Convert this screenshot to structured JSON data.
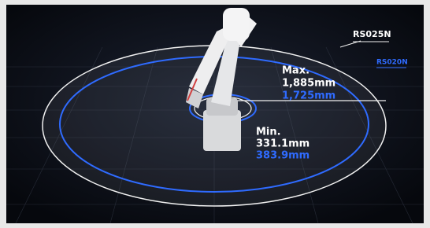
{
  "labels": {
    "outer_model": "RS025N",
    "inner_model": "RS020N"
  },
  "max_reach": {
    "title": "Max.",
    "outer_value": "1,885mm",
    "inner_value": "1,725mm"
  },
  "min_reach": {
    "title": "Min.",
    "outer_value": "331.1mm",
    "inner_value": "383.9mm"
  }
}
